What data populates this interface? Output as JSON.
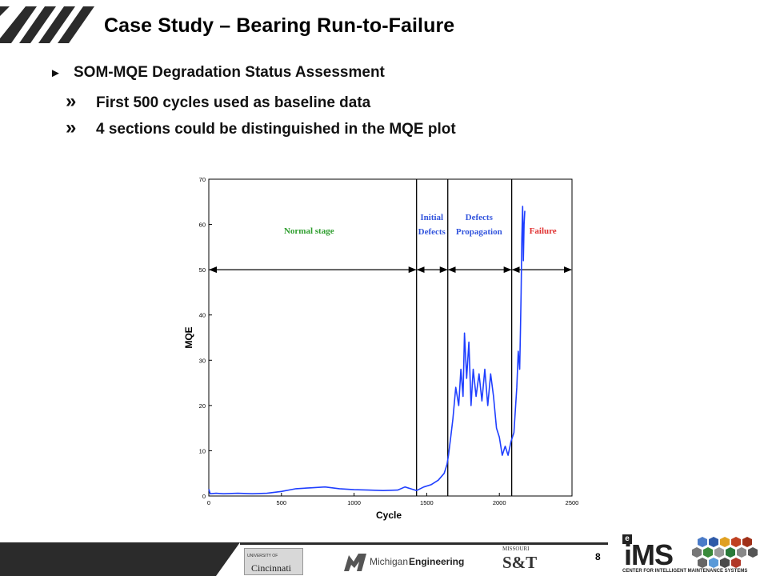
{
  "slide": {
    "title": "Case Study – Bearing Run-to-Failure",
    "bullets": [
      {
        "marker": "►",
        "text": "SOM-MQE Degradation Status Assessment"
      },
      {
        "marker": "»",
        "text": "First 500 cycles used as baseline data"
      },
      {
        "marker": "»",
        "text": "4 sections could be distinguished in the MQE plot"
      }
    ],
    "page_number": "8",
    "logos": {
      "cincinnati": {
        "line1": "UNIVERSITY OF",
        "line2": "Cincinnati"
      },
      "michigan": {
        "text_a": "Michigan",
        "text_b": "Engineering"
      },
      "missouri": {
        "line1": "MISSOURI",
        "line2": "S&T"
      },
      "ims": {
        "main": "iMS",
        "sub": "CENTER FOR INTELLIGENT MAINTENANCE SYSTEMS",
        "corner": "e"
      }
    }
  },
  "chart_data": {
    "type": "line",
    "xlabel": "Cycle",
    "ylabel": "MQE",
    "xlim": [
      0,
      2500
    ],
    "ylim": [
      0,
      70
    ],
    "xticks": [
      0,
      500,
      1000,
      1500,
      2000,
      2500
    ],
    "yticks": [
      0,
      10,
      20,
      30,
      40,
      50,
      60,
      70
    ],
    "grid": false,
    "boundaries": [
      1430,
      1645,
      2085
    ],
    "stages": [
      {
        "lines": [
          "Normal stage"
        ],
        "color": "#2e9e2e",
        "x": 690,
        "y": 58
      },
      {
        "lines": [
          "Initial",
          "Defects"
        ],
        "color": "#3355dd",
        "x": 1535,
        "y": 61
      },
      {
        "lines": [
          "Defects",
          "Propagation"
        ],
        "color": "#3355dd",
        "x": 1860,
        "y": 61
      },
      {
        "lines": [
          "Failure"
        ],
        "color": "#e03030",
        "x": 2300,
        "y": 58
      }
    ],
    "arrow_y": 50,
    "series": [
      {
        "color": "#1f3fff",
        "x": [
          0,
          10,
          50,
          100,
          200,
          300,
          400,
          500,
          600,
          700,
          800,
          900,
          1000,
          1100,
          1200,
          1300,
          1350,
          1400,
          1430,
          1480,
          1530,
          1580,
          1620,
          1640,
          1650,
          1665,
          1680,
          1700,
          1720,
          1735,
          1750,
          1760,
          1775,
          1790,
          1805,
          1820,
          1840,
          1860,
          1880,
          1900,
          1920,
          1940,
          1960,
          1980,
          2000,
          2020,
          2040,
          2060,
          2080,
          2100,
          2110,
          2120,
          2130,
          2140,
          2145,
          2150,
          2155,
          2160,
          2165,
          2170,
          2175
        ],
        "y": [
          1.5,
          0.5,
          0.6,
          0.5,
          0.6,
          0.5,
          0.6,
          1.0,
          1.6,
          1.8,
          2.0,
          1.6,
          1.4,
          1.3,
          1.2,
          1.3,
          2.0,
          1.5,
          1.2,
          2.0,
          2.5,
          3.5,
          5.0,
          7.0,
          9.0,
          13.0,
          17.0,
          24.0,
          20.0,
          28.0,
          22.0,
          36.0,
          26.0,
          34.0,
          20.0,
          28.0,
          22.0,
          27.0,
          21.0,
          28.0,
          20.0,
          27.0,
          22.0,
          15.0,
          13.0,
          9.0,
          11.0,
          9.0,
          12.0,
          14.0,
          19.0,
          24.0,
          32.0,
          28.0,
          36.0,
          45.0,
          57.0,
          64.0,
          52.0,
          60.0,
          63.0
        ]
      }
    ]
  }
}
